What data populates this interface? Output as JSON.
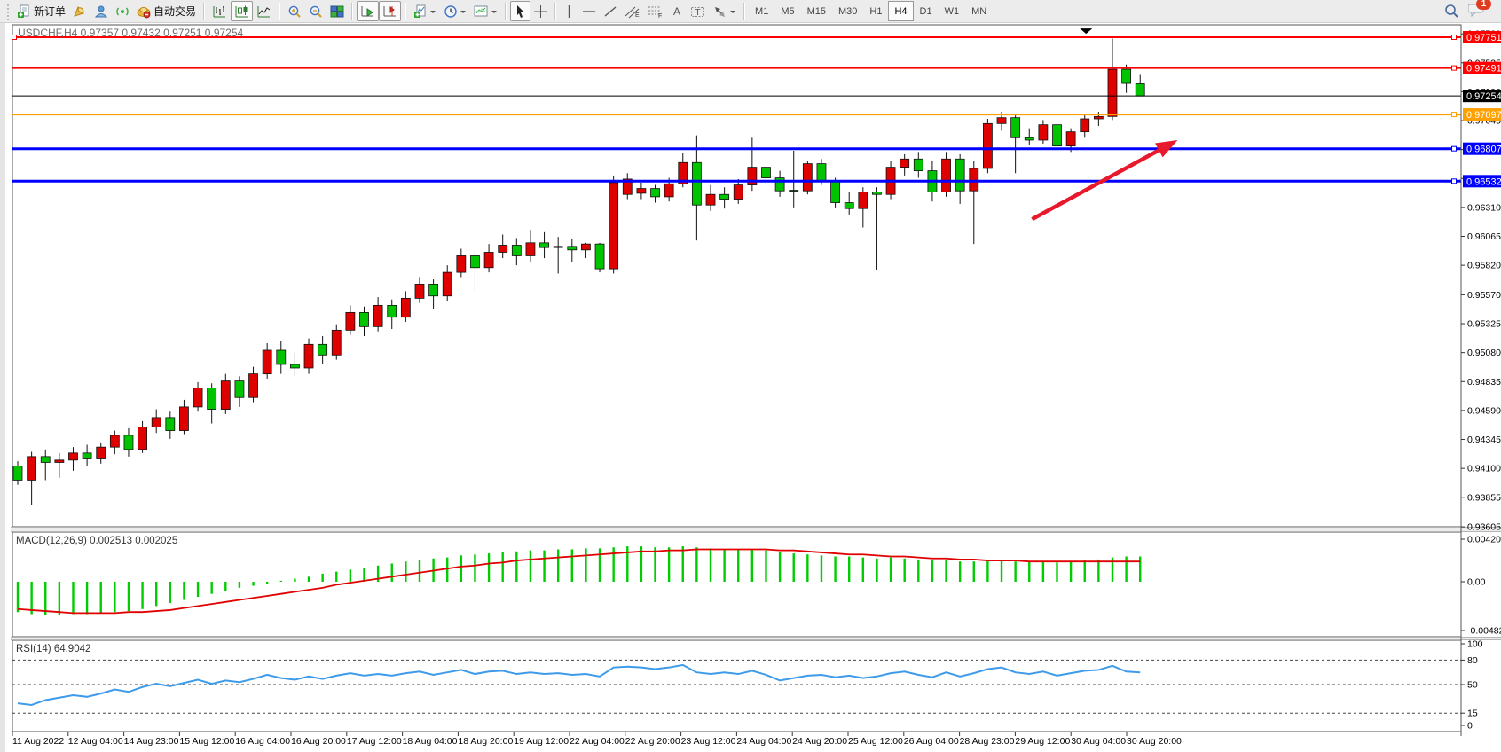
{
  "toolbar": {
    "new_order_label": "新订单",
    "autotrade_label": "自动交易",
    "timeframes": [
      "M1",
      "M5",
      "M15",
      "M30",
      "H1",
      "H4",
      "D1",
      "W1",
      "MN"
    ],
    "active_timeframe": "H4",
    "notification_count": "1"
  },
  "chart": {
    "title": "USDCHF,H4  0.97357 0.97432 0.97251 0.97254",
    "symbol": "USDCHF",
    "period": "H4",
    "ohlc": {
      "open": "0.97357",
      "high": "0.97432",
      "low": "0.97251",
      "close": "0.97254"
    },
    "colors": {
      "up_candle": "#DF0000",
      "down_candle": "#00C400",
      "wick": "#111111",
      "line_red": "#FF0000",
      "line_blue": "#0000FF",
      "line_orange": "#FFA000",
      "line_black": "#000000",
      "arrow": "#E8192C",
      "macd_hist": "#00CC00",
      "macd_signal": "#E00000",
      "rsi_line": "#3E9BE9"
    },
    "y_ticks": [
      0.9778,
      0.97535,
      0.9729,
      0.97045,
      0.968,
      0.96555,
      0.9631,
      0.96065,
      0.9582,
      0.9557,
      0.95325,
      0.9508,
      0.94835,
      0.9459,
      0.94345,
      0.941,
      0.93855,
      0.93605
    ],
    "price_labels": [
      {
        "text": "0.97751",
        "price": 0.97751,
        "bg": "#FF0000"
      },
      {
        "text": "0.97491",
        "price": 0.97491,
        "bg": "#FF0000"
      },
      {
        "text": "0.97254",
        "price": 0.97254,
        "bg": "#000000"
      },
      {
        "text": "0.97097",
        "price": 0.97097,
        "bg": "#FFA000"
      },
      {
        "text": "0.96807",
        "price": 0.96807,
        "bg": "#0000FF"
      },
      {
        "text": "0.96532",
        "price": 0.96532,
        "bg": "#0000FF"
      }
    ],
    "hlines": [
      {
        "price": 0.97751,
        "color": "#FF0000",
        "width": 2,
        "handles": [
          "left",
          "right"
        ]
      },
      {
        "price": 0.97491,
        "color": "#FF0000",
        "width": 2,
        "handles": [
          "right"
        ]
      },
      {
        "price": 0.97254,
        "color": "#000000",
        "width": 1,
        "handles": []
      },
      {
        "price": 0.97097,
        "color": "#FFA000",
        "width": 2,
        "handles": [
          "right"
        ]
      },
      {
        "price": 0.96807,
        "color": "#0000FF",
        "width": 3,
        "handles": [
          "right"
        ]
      },
      {
        "price": 0.96532,
        "color": "#0000FF",
        "width": 3,
        "handles": [
          "right"
        ]
      }
    ],
    "trend_arrow": {
      "from_bar": 73.2,
      "from_price": 0.9621,
      "to_bar": 83.7,
      "to_price": 0.9688,
      "color": "#E8192C"
    },
    "triangle_marker": {
      "bar": 77.1,
      "price": 0.97825,
      "color": "#000000"
    },
    "candles": [
      [
        0.9412,
        0.9416,
        0.9396,
        0.94
      ],
      [
        0.94,
        0.9424,
        0.9379,
        0.942
      ],
      [
        0.942,
        0.9426,
        0.94,
        0.9415
      ],
      [
        0.9415,
        0.9423,
        0.9402,
        0.9417
      ],
      [
        0.9417,
        0.9428,
        0.9408,
        0.9423
      ],
      [
        0.9423,
        0.943,
        0.9412,
        0.9418
      ],
      [
        0.9418,
        0.9432,
        0.9414,
        0.9428
      ],
      [
        0.9428,
        0.9442,
        0.9422,
        0.9438
      ],
      [
        0.9438,
        0.9444,
        0.942,
        0.9426
      ],
      [
        0.9426,
        0.945,
        0.9423,
        0.9445
      ],
      [
        0.9445,
        0.946,
        0.944,
        0.9453
      ],
      [
        0.9453,
        0.9458,
        0.9435,
        0.9442
      ],
      [
        0.9442,
        0.9468,
        0.9439,
        0.9462
      ],
      [
        0.9462,
        0.9483,
        0.9458,
        0.9478
      ],
      [
        0.9478,
        0.9482,
        0.9448,
        0.946
      ],
      [
        0.946,
        0.949,
        0.9456,
        0.9484
      ],
      [
        0.9484,
        0.9488,
        0.9462,
        0.947
      ],
      [
        0.947,
        0.9496,
        0.9466,
        0.949
      ],
      [
        0.949,
        0.9516,
        0.9486,
        0.951
      ],
      [
        0.951,
        0.9518,
        0.949,
        0.9498
      ],
      [
        0.9498,
        0.9508,
        0.9488,
        0.9495
      ],
      [
        0.9495,
        0.952,
        0.949,
        0.9515
      ],
      [
        0.9515,
        0.9522,
        0.9498,
        0.9506
      ],
      [
        0.9506,
        0.9532,
        0.9502,
        0.9527
      ],
      [
        0.9527,
        0.9548,
        0.9523,
        0.9542
      ],
      [
        0.9542,
        0.9547,
        0.9522,
        0.953
      ],
      [
        0.953,
        0.9555,
        0.9526,
        0.9548
      ],
      [
        0.9548,
        0.9553,
        0.9528,
        0.9538
      ],
      [
        0.9538,
        0.956,
        0.9534,
        0.9554
      ],
      [
        0.9554,
        0.9572,
        0.955,
        0.9566
      ],
      [
        0.9566,
        0.957,
        0.9545,
        0.9556
      ],
      [
        0.9556,
        0.9582,
        0.9552,
        0.9576
      ],
      [
        0.9576,
        0.9596,
        0.9572,
        0.959
      ],
      [
        0.959,
        0.9594,
        0.956,
        0.958
      ],
      [
        0.958,
        0.96,
        0.9576,
        0.9593
      ],
      [
        0.9593,
        0.9608,
        0.9588,
        0.9599
      ],
      [
        0.9599,
        0.9605,
        0.9582,
        0.959
      ],
      [
        0.959,
        0.9612,
        0.9585,
        0.9601
      ],
      [
        0.9601,
        0.961,
        0.9588,
        0.9597
      ],
      [
        0.9597,
        0.9606,
        0.9575,
        0.9598
      ],
      [
        0.9598,
        0.9604,
        0.9585,
        0.9595
      ],
      [
        0.9595,
        0.9601,
        0.9588,
        0.96
      ],
      [
        0.96,
        0.9601,
        0.9576,
        0.9579
      ],
      [
        0.9579,
        0.9658,
        0.9575,
        0.9652
      ],
      [
        0.9642,
        0.966,
        0.9638,
        0.9655
      ],
      [
        0.9643,
        0.9652,
        0.9638,
        0.9647
      ],
      [
        0.9647,
        0.965,
        0.9635,
        0.964
      ],
      [
        0.964,
        0.9656,
        0.9636,
        0.9651
      ],
      [
        0.9651,
        0.9677,
        0.9648,
        0.9669
      ],
      [
        0.9669,
        0.9692,
        0.9603,
        0.9633
      ],
      [
        0.9633,
        0.965,
        0.9628,
        0.9642
      ],
      [
        0.9642,
        0.9648,
        0.963,
        0.9638
      ],
      [
        0.9638,
        0.9655,
        0.9634,
        0.965
      ],
      [
        0.965,
        0.969,
        0.9645,
        0.9665
      ],
      [
        0.9665,
        0.967,
        0.965,
        0.9656
      ],
      [
        0.9656,
        0.9662,
        0.964,
        0.9645
      ],
      [
        0.96455,
        0.9679,
        0.9631,
        0.9645
      ],
      [
        0.9645,
        0.967,
        0.9642,
        0.9668
      ],
      [
        0.9668,
        0.9672,
        0.965,
        0.9653
      ],
      [
        0.9653,
        0.9656,
        0.9631,
        0.9635
      ],
      [
        0.9635,
        0.9644,
        0.9625,
        0.963
      ],
      [
        0.963,
        0.9648,
        0.9614,
        0.9644
      ],
      [
        0.9644,
        0.9648,
        0.9578,
        0.9642
      ],
      [
        0.9642,
        0.967,
        0.9638,
        0.9665
      ],
      [
        0.9665,
        0.9676,
        0.9658,
        0.9672
      ],
      [
        0.9672,
        0.9678,
        0.9656,
        0.9662
      ],
      [
        0.9662,
        0.967,
        0.9636,
        0.9644
      ],
      [
        0.9644,
        0.9678,
        0.964,
        0.9672
      ],
      [
        0.9672,
        0.9676,
        0.9634,
        0.9645
      ],
      [
        0.9645,
        0.967,
        0.96,
        0.9664
      ],
      [
        0.9664,
        0.9706,
        0.966,
        0.9702
      ],
      [
        0.9702,
        0.9712,
        0.9696,
        0.9707
      ],
      [
        0.9707,
        0.971,
        0.966,
        0.969
      ],
      [
        0.969,
        0.9698,
        0.9684,
        0.9688
      ],
      [
        0.9688,
        0.9705,
        0.9685,
        0.9701
      ],
      [
        0.9701,
        0.9709,
        0.9675,
        0.9683
      ],
      [
        0.9683,
        0.9698,
        0.9678,
        0.9695
      ],
      [
        0.9695,
        0.971,
        0.969,
        0.9706
      ],
      [
        0.9706,
        0.9712,
        0.97,
        0.9708
      ],
      [
        0.9708,
        0.9774,
        0.9705,
        0.9748
      ],
      [
        0.9748,
        0.9752,
        0.9728,
        0.9736
      ],
      [
        0.97357,
        0.97432,
        0.97251,
        0.97254
      ]
    ]
  },
  "macd": {
    "label": "MACD(12,26,9) 0.002513 0.002025",
    "axis_max": "0.004207",
    "axis_zero": "0.00",
    "axis_min": "-0.004823",
    "histogram": [
      -0.003,
      -0.0032,
      -0.0033,
      -0.0033,
      -0.0032,
      -0.0032,
      -0.0031,
      -0.003,
      -0.0029,
      -0.0027,
      -0.0024,
      -0.0021,
      -0.0018,
      -0.0015,
      -0.0012,
      -0.0009,
      -0.0006,
      -0.0004,
      -0.0002,
      0.0001,
      0.0003,
      0.0005,
      0.0008,
      0.001,
      0.0012,
      0.0014,
      0.0016,
      0.0018,
      0.002,
      0.0021,
      0.0023,
      0.0024,
      0.0026,
      0.0027,
      0.0028,
      0.0029,
      0.003,
      0.0031,
      0.0031,
      0.0032,
      0.0032,
      0.0033,
      0.0033,
      0.0034,
      0.0035,
      0.0035,
      0.0034,
      0.0034,
      0.0035,
      0.0034,
      0.0033,
      0.0032,
      0.0032,
      0.0032,
      0.0031,
      0.0029,
      0.0028,
      0.0027,
      0.0026,
      0.0025,
      0.0025,
      0.0024,
      0.0023,
      0.0024,
      0.0023,
      0.0022,
      0.0021,
      0.0021,
      0.002,
      0.002,
      0.0021,
      0.0021,
      0.002,
      0.002,
      0.002,
      0.0019,
      0.002,
      0.0021,
      0.0022,
      0.0024,
      0.0025,
      0.0025
    ],
    "signal": [
      -0.0027,
      -0.0028,
      -0.0029,
      -0.003,
      -0.0031,
      -0.0031,
      -0.0031,
      -0.0031,
      -0.003,
      -0.003,
      -0.0029,
      -0.0028,
      -0.0026,
      -0.0024,
      -0.0022,
      -0.002,
      -0.0018,
      -0.0016,
      -0.0014,
      -0.0012,
      -0.001,
      -0.0008,
      -0.0006,
      -0.0003,
      -0.0001,
      0.0001,
      0.0003,
      0.0005,
      0.0007,
      0.0009,
      0.0011,
      0.0013,
      0.0015,
      0.0016,
      0.0018,
      0.0019,
      0.0021,
      0.0022,
      0.0023,
      0.0024,
      0.0025,
      0.0026,
      0.0027,
      0.0028,
      0.0029,
      0.003,
      0.003,
      0.0031,
      0.0031,
      0.0032,
      0.0032,
      0.0032,
      0.0032,
      0.0032,
      0.0032,
      0.0031,
      0.0031,
      0.003,
      0.0029,
      0.0028,
      0.0027,
      0.0027,
      0.0026,
      0.0025,
      0.0025,
      0.0024,
      0.0023,
      0.0023,
      0.0022,
      0.0022,
      0.0021,
      0.0021,
      0.0021,
      0.002,
      0.002,
      0.002,
      0.002,
      0.002,
      0.002,
      0.002,
      0.002,
      0.002
    ]
  },
  "rsi": {
    "label": "RSI(14) 64.9042",
    "axis_labels": [
      "100",
      "80",
      "50",
      "15",
      "0"
    ],
    "axis_values": [
      100,
      80,
      50,
      15,
      0
    ],
    "dashed_levels": [
      80,
      50,
      15
    ],
    "series": [
      27,
      25,
      31,
      34,
      37,
      35,
      39,
      44,
      41,
      47,
      51,
      48,
      52,
      56,
      51,
      55,
      53,
      57,
      62,
      58,
      56,
      60,
      57,
      61,
      64,
      61,
      63,
      61,
      64,
      66,
      62,
      65,
      68,
      63,
      66,
      67,
      63,
      65,
      63,
      64,
      62,
      63,
      60,
      71,
      72,
      71,
      69,
      71,
      74,
      65,
      63,
      65,
      63,
      67,
      62,
      55,
      58,
      61,
      62,
      59,
      61,
      58,
      60,
      64,
      66,
      62,
      59,
      65,
      60,
      64,
      69,
      71,
      65,
      63,
      66,
      61,
      64,
      67,
      68,
      73,
      66,
      65
    ]
  },
  "time_axis": {
    "labels": [
      "11 Aug 2022",
      "12 Aug 04:00",
      "14 Aug 23:00",
      "15 Aug 12:00",
      "16 Aug 04:00",
      "16 Aug 20:00",
      "17 Aug 12:00",
      "18 Aug 04:00",
      "18 Aug 20:00",
      "19 Aug 12:00",
      "22 Aug 04:00",
      "22 Aug 20:00",
      "23 Aug 12:00",
      "24 Aug 04:00",
      "24 Aug 20:00",
      "25 Aug 12:00",
      "26 Aug 04:00",
      "28 Aug 23:00",
      "29 Aug 12:00",
      "30 Aug 04:00",
      "30 Aug 20:00"
    ]
  }
}
